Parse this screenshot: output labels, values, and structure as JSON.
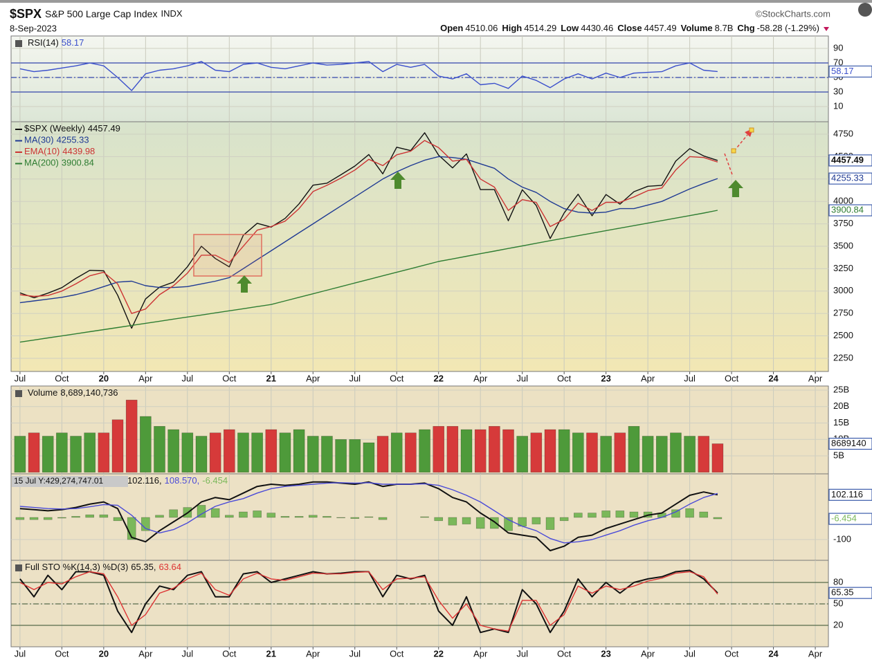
{
  "header": {
    "symbol": "$SPX",
    "name": "S&P 500 Large Cap Index",
    "exchange": "INDX",
    "date": "8-Sep-2023",
    "copyright": "©StockCharts.com",
    "quote": [
      {
        "label": "Open",
        "value": "4510.06"
      },
      {
        "label": "High",
        "value": "4514.29"
      },
      {
        "label": "Low",
        "value": "4430.46"
      },
      {
        "label": "Close",
        "value": "4457.49"
      },
      {
        "label": "Volume",
        "value": "8.7B"
      },
      {
        "label": "Chg",
        "value": "-58.28 (-1.29%)"
      }
    ]
  },
  "chart_data": [
    {
      "type": "line",
      "ylim": [
        -10.95,
        107.14
      ],
      "yticks": [
        10,
        30,
        50,
        70,
        90
      ],
      "reference_lines": [
        30,
        70
      ],
      "midline": 50,
      "reference_color": "#3344aa",
      "series": [
        {
          "name": "RSI(14)",
          "color": "#3a4fcc",
          "tag": true,
          "values": [
            62,
            58,
            60,
            63,
            66,
            70,
            66,
            50,
            32,
            55,
            60,
            62,
            66,
            72,
            60,
            58,
            68,
            70,
            64,
            62,
            66,
            70,
            67,
            68,
            70,
            72,
            58,
            68,
            64,
            68,
            52,
            48,
            55,
            40,
            42,
            35,
            52,
            46,
            36,
            48,
            55,
            48,
            56,
            50,
            56,
            57,
            58,
            66,
            70,
            60,
            58.17
          ]
        }
      ]
    },
    {
      "type": "line",
      "legend_rows": true,
      "ylim": [
        2103,
        4889
      ],
      "yticks": [
        2250,
        2500,
        2750,
        3000,
        3250,
        3500,
        3750,
        4000,
        4250,
        4500,
        4750
      ],
      "x": [
        0,
        1,
        2,
        3,
        4,
        5,
        6,
        7,
        8,
        9,
        10,
        11,
        12,
        13,
        14,
        15,
        16,
        17,
        18,
        19,
        20,
        21,
        22,
        23,
        24,
        25,
        26,
        27,
        28,
        29,
        30,
        31,
        32,
        33,
        34,
        35,
        36,
        37,
        38,
        39,
        40,
        41,
        42,
        43,
        44,
        45,
        46,
        47,
        48,
        49,
        50
      ],
      "xlim": [
        -0.64,
        57.94
      ],
      "xticks": [
        {
          "value": 0,
          "label": "Jul"
        },
        {
          "value": 3,
          "label": "Oct"
        },
        {
          "value": 6,
          "label": "20"
        },
        {
          "value": 9,
          "label": "Apr"
        },
        {
          "value": 12,
          "label": "Jul"
        },
        {
          "value": 15,
          "label": "Oct"
        },
        {
          "value": 18,
          "label": "21"
        },
        {
          "value": 21,
          "label": "Apr"
        },
        {
          "value": 24,
          "label": "Jul"
        },
        {
          "value": 27,
          "label": "Oct"
        },
        {
          "value": 30,
          "label": "22"
        },
        {
          "value": 33,
          "label": "Apr"
        },
        {
          "value": 36,
          "label": "Jul"
        },
        {
          "value": 39,
          "label": "Oct"
        },
        {
          "value": 42,
          "label": "23"
        },
        {
          "value": 45,
          "label": "Apr"
        },
        {
          "value": 48,
          "label": "Jul"
        },
        {
          "value": 51,
          "label": "Oct"
        },
        {
          "value": 54,
          "label": "24"
        },
        {
          "value": 57,
          "label": "Apr"
        }
      ],
      "series": [
        {
          "name": "$SPX (Weekly)",
          "color": "#111111",
          "tag": true,
          "values": [
            2980,
            2926,
            2977,
            3038,
            3141,
            3231,
            3226,
            2954,
            2585,
            2912,
            3044,
            3100,
            3271,
            3500,
            3363,
            3270,
            3622,
            3756,
            3714,
            3811,
            3973,
            4181,
            4204,
            4298,
            4395,
            4523,
            4308,
            4605,
            4567,
            4766,
            4516,
            4374,
            4530,
            4132,
            4132,
            3785,
            4130,
            3955,
            3586,
            3872,
            4080,
            3840,
            4077,
            3970,
            4109,
            4169,
            4180,
            4450,
            4589,
            4508,
            4457.49
          ]
        },
        {
          "name": "MA(30)",
          "color": "#1f3a93",
          "tag": true,
          "values": [
            2870,
            2890,
            2910,
            2930,
            2960,
            3000,
            3050,
            3100,
            3110,
            3060,
            3040,
            3040,
            3050,
            3080,
            3110,
            3150,
            3250,
            3350,
            3450,
            3550,
            3650,
            3750,
            3850,
            3950,
            4050,
            4150,
            4250,
            4330,
            4400,
            4460,
            4500,
            4490,
            4470,
            4420,
            4370,
            4250,
            4160,
            4100,
            4000,
            3920,
            3880,
            3870,
            3880,
            3920,
            3920,
            3960,
            4000,
            4070,
            4140,
            4200,
            4255.33
          ]
        },
        {
          "name": "EMA(10)",
          "color": "#cc3333",
          "values": [
            2960,
            2940,
            2950,
            3000,
            3080,
            3170,
            3210,
            3080,
            2750,
            2800,
            2960,
            3060,
            3200,
            3400,
            3400,
            3320,
            3500,
            3680,
            3720,
            3780,
            3920,
            4110,
            4180,
            4260,
            4350,
            4470,
            4400,
            4520,
            4560,
            4680,
            4600,
            4450,
            4470,
            4250,
            4160,
            3900,
            4020,
            3990,
            3720,
            3800,
            3980,
            3900,
            3990,
            3990,
            4050,
            4120,
            4150,
            4350,
            4500,
            4490,
            4439.98
          ]
        },
        {
          "name": "MA(200)",
          "color": "#2e7d32",
          "tag": true,
          "values": [
            2430,
            2453,
            2477,
            2500,
            2523,
            2547,
            2570,
            2593,
            2617,
            2640,
            2663,
            2687,
            2710,
            2733,
            2757,
            2780,
            2803,
            2827,
            2850,
            2890,
            2930,
            2970,
            3010,
            3050,
            3090,
            3130,
            3170,
            3210,
            3250,
            3290,
            3330,
            3359,
            3388,
            3417,
            3446,
            3475,
            3504,
            3533,
            3562,
            3590,
            3618,
            3646,
            3674,
            3702,
            3730,
            3758,
            3786,
            3814,
            3842,
            3870,
            3900.84
          ]
        }
      ]
    },
    {
      "type": "bar",
      "ylim": [
        -0.47,
        26.26
      ],
      "yticks": [
        {
          "value": 5,
          "label": "5B"
        },
        {
          "value": 10,
          "label": "10B"
        },
        {
          "value": 15,
          "label": "15B"
        },
        {
          "value": 20,
          "label": "20B"
        },
        {
          "value": 25,
          "label": "25B"
        }
      ],
      "series": [
        {
          "name": "Volume",
          "legend_label": "8,689,140,736",
          "tag": true,
          "tag_label": "8689140",
          "color": "#333333",
          "values": [
            11,
            12,
            11,
            12,
            11,
            12,
            12,
            16,
            22,
            17,
            14,
            13,
            12,
            11,
            12,
            13,
            12,
            12,
            13,
            12,
            13,
            11,
            11,
            10,
            10,
            9,
            11,
            12,
            12,
            13,
            14,
            14,
            13,
            13,
            14,
            13,
            11,
            12,
            13,
            13,
            12,
            12,
            11,
            12,
            14,
            11,
            11,
            12,
            11,
            11,
            8.689140736
          ],
          "colors": [
            "#4e9a3a",
            "#d63a3a",
            "#4e9a3a",
            "#4e9a3a",
            "#4e9a3a",
            "#4e9a3a",
            "#d63a3a",
            "#d63a3a",
            "#d63a3a",
            "#4e9a3a",
            "#4e9a3a",
            "#4e9a3a",
            "#4e9a3a",
            "#4e9a3a",
            "#d63a3a",
            "#d63a3a",
            "#4e9a3a",
            "#4e9a3a",
            "#d63a3a",
            "#4e9a3a",
            "#4e9a3a",
            "#4e9a3a",
            "#4e9a3a",
            "#4e9a3a",
            "#4e9a3a",
            "#4e9a3a",
            "#d63a3a",
            "#4e9a3a",
            "#d63a3a",
            "#4e9a3a",
            "#d63a3a",
            "#d63a3a",
            "#4e9a3a",
            "#d63a3a",
            "#d63a3a",
            "#d63a3a",
            "#4e9a3a",
            "#d63a3a",
            "#d63a3a",
            "#4e9a3a",
            "#4e9a3a",
            "#d63a3a",
            "#4e9a3a",
            "#d63a3a",
            "#4e9a3a",
            "#4e9a3a",
            "#4e9a3a",
            "#4e9a3a",
            "#4e9a3a",
            "#d63a3a",
            "#d63a3a"
          ]
        }
      ]
    },
    {
      "type": "line",
      "ylim": [
        -193.75,
        196.9
      ],
      "yticks": [
        -100
      ],
      "tooltip": "15 Jul Y:429,274,747.01",
      "series": [
        {
          "legend_label": "102.116,",
          "color": "#111111",
          "width": 2,
          "tag": true,
          "values": [
            40,
            35,
            30,
            35,
            45,
            60,
            70,
            40,
            -90,
            -110,
            -60,
            -20,
            20,
            70,
            90,
            80,
            110,
            140,
            150,
            145,
            150,
            160,
            160,
            155,
            150,
            160,
            140,
            150,
            150,
            155,
            130,
            90,
            70,
            20,
            -20,
            -70,
            -80,
            -90,
            -150,
            -130,
            -90,
            -80,
            -50,
            -30,
            -10,
            10,
            20,
            60,
            100,
            115,
            102.116
          ]
        },
        {
          "legend_label": "108.570,",
          "color": "#4a4ad8",
          "values": [
            50,
            45,
            40,
            38,
            40,
            48,
            58,
            55,
            10,
            -50,
            -70,
            -55,
            -25,
            15,
            50,
            70,
            85,
            110,
            130,
            140,
            145,
            150,
            155,
            157,
            155,
            157,
            150,
            150,
            150,
            152,
            145,
            125,
            100,
            70,
            30,
            -10,
            -40,
            -60,
            -95,
            -115,
            -110,
            -100,
            -80,
            -60,
            -35,
            -15,
            0,
            25,
            60,
            90,
            108.57
          ]
        },
        {
          "legend_label": "-6.454",
          "color": "#7ab85a",
          "style": "histogram",
          "tag": true,
          "values": [
            -10,
            -10,
            -10,
            -3,
            5,
            12,
            12,
            -15,
            -100,
            -60,
            10,
            35,
            45,
            55,
            40,
            10,
            25,
            30,
            20,
            5,
            5,
            10,
            5,
            -2,
            -5,
            3,
            -10,
            0,
            0,
            3,
            -15,
            -35,
            -30,
            -50,
            -50,
            -60,
            -40,
            -30,
            -55,
            -15,
            20,
            20,
            30,
            30,
            25,
            25,
            20,
            35,
            40,
            25,
            -6.454
          ]
        }
      ]
    },
    {
      "type": "line",
      "label": "Full STO %K(14,3) %D(3)",
      "ylim": [
        -10,
        111
      ],
      "yticks": [
        20,
        50,
        80
      ],
      "reference_lines": [
        20,
        80
      ],
      "midline": 50,
      "reference_color": "#556b4a",
      "xticks": [
        {
          "value": 0,
          "label": "Jul"
        },
        {
          "value": 3,
          "label": "Oct"
        },
        {
          "value": 6,
          "label": "20"
        },
        {
          "value": 9,
          "label": "Apr"
        },
        {
          "value": 12,
          "label": "Jul"
        },
        {
          "value": 15,
          "label": "Oct"
        },
        {
          "value": 18,
          "label": "21"
        },
        {
          "value": 21,
          "label": "Apr"
        },
        {
          "value": 24,
          "label": "Jul"
        },
        {
          "value": 27,
          "label": "Oct"
        },
        {
          "value": 30,
          "label": "22"
        },
        {
          "value": 33,
          "label": "Apr"
        },
        {
          "value": 36,
          "label": "Jul"
        },
        {
          "value": 39,
          "label": "Oct"
        },
        {
          "value": 42,
          "label": "23"
        },
        {
          "value": 45,
          "label": "Apr"
        },
        {
          "value": 48,
          "label": "Jul"
        },
        {
          "value": 51,
          "label": "Oct"
        },
        {
          "value": 54,
          "label": "24"
        },
        {
          "value": 57,
          "label": "Apr"
        }
      ],
      "series": [
        {
          "legend_label": "65.35,",
          "color": "#111111",
          "width": 2,
          "tag": true,
          "values": [
            85,
            60,
            90,
            70,
            95,
            95,
            90,
            40,
            10,
            50,
            75,
            70,
            90,
            95,
            60,
            60,
            92,
            95,
            80,
            85,
            90,
            95,
            92,
            93,
            95,
            95,
            60,
            90,
            85,
            90,
            40,
            20,
            60,
            10,
            15,
            10,
            70,
            50,
            10,
            40,
            85,
            60,
            80,
            65,
            80,
            85,
            88,
            95,
            97,
            85,
            65.35
          ]
        },
        {
          "legend_label": "63.64",
          "color": "#dd3333",
          "values": [
            80,
            70,
            80,
            78,
            88,
            95,
            92,
            60,
            20,
            35,
            65,
            72,
            85,
            93,
            70,
            62,
            85,
            93,
            85,
            83,
            88,
            93,
            92,
            92,
            94,
            95,
            70,
            85,
            86,
            88,
            55,
            30,
            50,
            20,
            15,
            12,
            55,
            55,
            20,
            35,
            75,
            65,
            75,
            70,
            75,
            82,
            86,
            93,
            95,
            88,
            63.64
          ]
        }
      ]
    }
  ]
}
